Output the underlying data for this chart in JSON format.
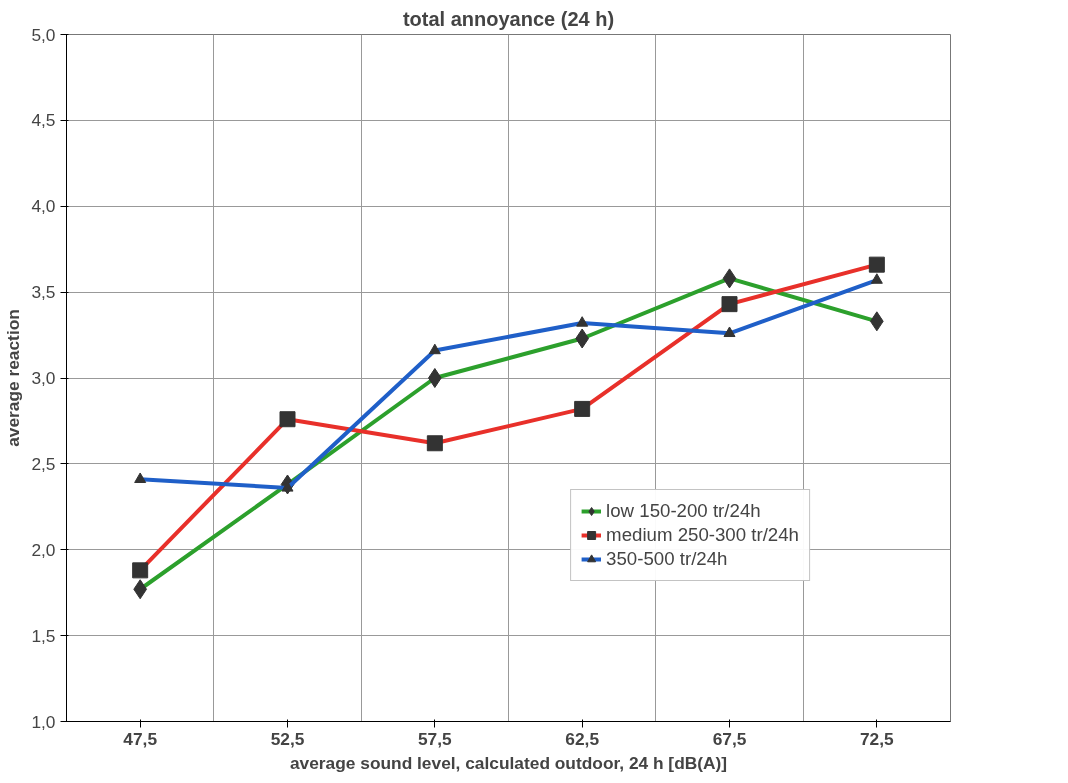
{
  "chart_data": {
    "type": "line",
    "title": "total annoyance (24 h)",
    "xlabel": "average sound level, calculated outdoor, 24 h [dB(A)]",
    "ylabel": "average reaction",
    "categories": [
      "47,5",
      "52,5",
      "57,5",
      "62,5",
      "67,5",
      "72,5"
    ],
    "series": [
      {
        "name": "low 150-200 tr/24h",
        "color": "#2ca02c",
        "marker": "diamond",
        "values": [
          1.77,
          2.38,
          3.0,
          3.23,
          3.58,
          3.33
        ]
      },
      {
        "name": "medium 250-300 tr/24h",
        "color": "#e8302a",
        "marker": "square",
        "values": [
          1.88,
          2.76,
          2.62,
          2.82,
          3.43,
          3.66
        ]
      },
      {
        "name": "350-500 tr/24h",
        "color": "#1f5fc8",
        "marker": "triangle",
        "values": [
          2.41,
          2.36,
          3.16,
          3.32,
          3.26,
          3.57
        ]
      }
    ],
    "ylim": [
      1.0,
      5.0
    ],
    "yticks": [
      {
        "value": 1.0,
        "label": "1,0"
      },
      {
        "value": 1.5,
        "label": "1,5"
      },
      {
        "value": 2.0,
        "label": "2,0"
      },
      {
        "value": 2.5,
        "label": "2,5"
      },
      {
        "value": 3.0,
        "label": "3,0"
      },
      {
        "value": 3.5,
        "label": "3,5"
      },
      {
        "value": 4.0,
        "label": "4,0"
      },
      {
        "value": 4.5,
        "label": "4,5"
      },
      {
        "value": 5.0,
        "label": "5,0"
      }
    ],
    "grid": true,
    "legend": "bottom right",
    "line_style": "solid"
  }
}
